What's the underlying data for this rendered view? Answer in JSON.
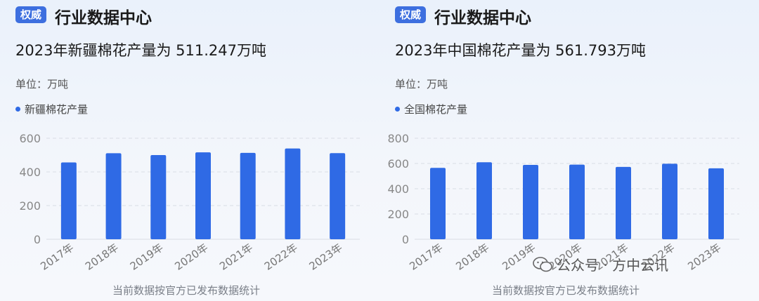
{
  "panels": [
    {
      "badge": "权威",
      "title": "行业数据中心",
      "headline": "2023年新疆棉花产量为 511.247万吨",
      "unit": "单位：万吨",
      "legend": "新疆棉花产量",
      "footnote": "当前数据按官方已发布数据统计"
    },
    {
      "badge": "权威",
      "title": "行业数据中心",
      "headline": "2023年中国棉花产量为 561.793万吨",
      "unit": "单位：万吨",
      "legend": "全国棉花产量",
      "footnote": "当前数据按官方已发布数据统计"
    }
  ],
  "watermark": {
    "text": "公众号 · 方中云讯",
    "icon": "wechat-icon"
  },
  "colors": {
    "bar": "#2f6ae5",
    "badge": "#3d6fdf",
    "grid": "#d9dde4"
  },
  "chart_data": [
    {
      "type": "bar",
      "categories": [
        "2017年",
        "2018年",
        "2019年",
        "2020年",
        "2021年",
        "2022年",
        "2023年"
      ],
      "series": [
        {
          "name": "新疆棉花产量",
          "values": [
            456,
            511,
            500,
            516,
            513,
            539,
            511.247
          ]
        }
      ],
      "ylim": [
        0,
        600
      ],
      "yticks": [
        0,
        200,
        400,
        600
      ],
      "grid": true,
      "legend": "top-left"
    },
    {
      "type": "bar",
      "categories": [
        "2017年",
        "2018年",
        "2019年",
        "2020年",
        "2021年",
        "2022年",
        "2023年"
      ],
      "series": [
        {
          "name": "全国棉花产量",
          "values": [
            565,
            610,
            589,
            591,
            573,
            598,
            561.793
          ]
        }
      ],
      "ylim": [
        0,
        800
      ],
      "yticks": [
        0,
        200,
        400,
        600,
        800
      ],
      "grid": true,
      "legend": "top-left"
    }
  ]
}
